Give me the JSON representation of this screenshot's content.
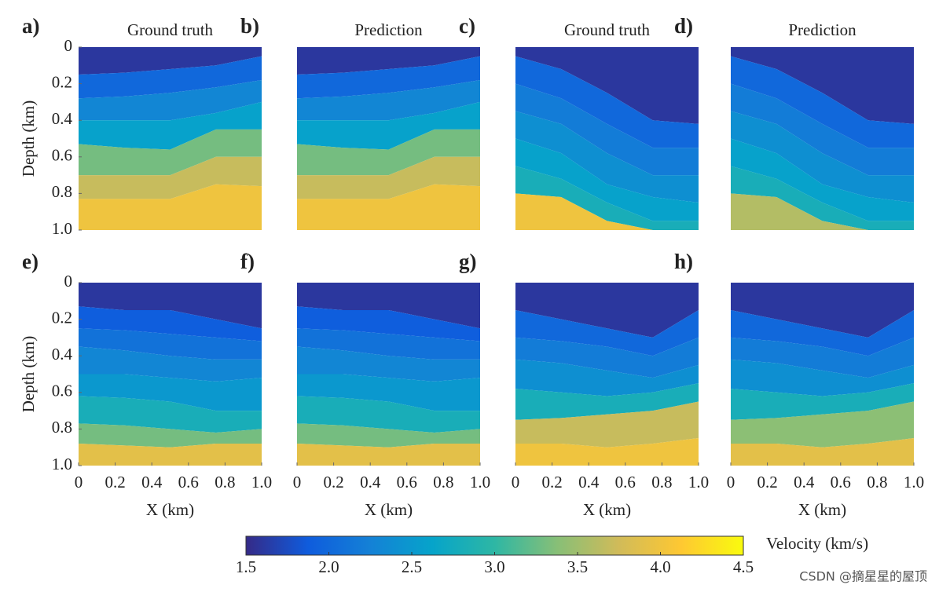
{
  "chart_data": [
    {
      "type": "heatmap",
      "label": "a)",
      "title": "Ground truth",
      "ylabel": "Depth (km)",
      "ylim": [
        0,
        1
      ],
      "yticks": [
        0,
        0.2,
        0.4,
        0.6,
        0.8,
        {
          "value": 1,
          "label": "1.0"
        }
      ],
      "layers": [
        1.6,
        2.0,
        2.3,
        2.6,
        3.3,
        3.7,
        4.0
      ]
    },
    {
      "type": "heatmap",
      "label": "b)",
      "title": "Prediction",
      "layers": [
        1.6,
        2.0,
        2.3,
        2.6,
        3.3,
        3.7,
        4.0
      ]
    },
    {
      "type": "heatmap",
      "label": "c)",
      "title": "Ground truth",
      "layers": [
        1.6,
        2.0,
        2.2,
        2.4,
        2.6,
        2.8,
        4.0
      ]
    },
    {
      "type": "heatmap",
      "label": "d)",
      "title": "Prediction",
      "layers": [
        1.6,
        2.0,
        2.2,
        2.4,
        2.6,
        2.8,
        3.6
      ]
    },
    {
      "type": "heatmap",
      "label": "e)",
      "ylabel": "Depth (km)",
      "ylim": [
        0,
        1
      ],
      "yticks": [
        0,
        0.2,
        0.4,
        0.6,
        0.8,
        {
          "value": 1,
          "label": "1.0"
        }
      ],
      "xlabel": "X (km)",
      "xlim": [
        0,
        1
      ],
      "xticks": [
        0,
        0.2,
        0.4,
        0.6,
        0.8,
        {
          "value": 1,
          "label": "1.0"
        }
      ],
      "layers": [
        1.6,
        1.9,
        2.1,
        2.3,
        2.5,
        2.8,
        3.3,
        3.9
      ]
    },
    {
      "type": "heatmap",
      "label": "f)",
      "xlabel": "X (km)",
      "xlim": [
        0,
        1
      ],
      "xticks": [
        0,
        0.2,
        0.4,
        0.6,
        0.8,
        {
          "value": 1,
          "label": "1.0"
        }
      ],
      "layers": [
        1.6,
        1.9,
        2.1,
        2.3,
        2.5,
        2.8,
        3.3,
        3.9
      ]
    },
    {
      "type": "heatmap",
      "label": "g)",
      "xlabel": "X (km)",
      "xlim": [
        0,
        1
      ],
      "xticks": [
        0,
        0.2,
        0.4,
        0.6,
        0.8,
        {
          "value": 1,
          "label": "1.0"
        }
      ],
      "layers": [
        1.6,
        2.0,
        2.2,
        2.4,
        2.8,
        3.7,
        4.0
      ]
    },
    {
      "type": "heatmap",
      "label": "h)",
      "xlabel": "X (km)",
      "xlim": [
        0,
        1
      ],
      "xticks": [
        0,
        0.2,
        0.4,
        0.6,
        0.8,
        {
          "value": 1,
          "label": "1.0"
        }
      ],
      "layers": [
        1.6,
        2.0,
        2.2,
        2.4,
        2.8,
        3.4,
        3.9
      ]
    }
  ],
  "colorbar": {
    "label": "Velocity (km/s)",
    "clim": [
      1.5,
      4.5
    ],
    "ticks": [
      1.5,
      {
        "value": 2,
        "label": "2.0"
      },
      2.5,
      {
        "value": 3,
        "label": "3.0"
      },
      3.5,
      {
        "value": 4,
        "label": "4.0"
      },
      4.5
    ]
  },
  "watermark": "CSDN @摘星星的屋顶"
}
